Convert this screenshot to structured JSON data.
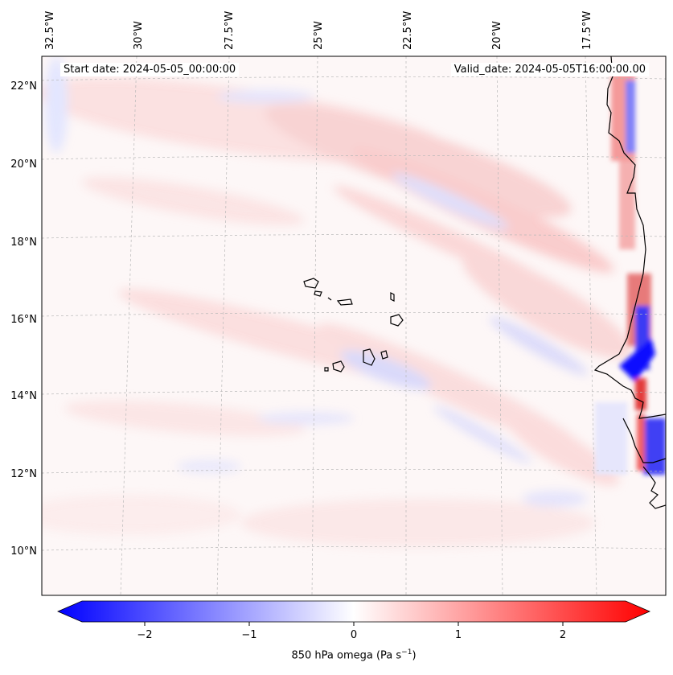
{
  "map": {
    "projection": "Lambert Conformal",
    "region": "Eastern tropical North Atlantic — Cape Verde Islands and West African coast",
    "lon_labels": [
      "32.5°W",
      "30°W",
      "27.5°W",
      "25°W",
      "22.5°W",
      "20°W",
      "17.5°W"
    ],
    "lat_labels": [
      "22°N",
      "20°N",
      "18°N",
      "16°N",
      "14°N",
      "12°N",
      "10°N"
    ],
    "start_date_label": "Start date: 2024-05-05_00:00:00",
    "valid_date_label": "Valid_date: 2024-05-05T16:00:00.00",
    "field": "850 hPa omega",
    "colormap": "bwr",
    "colors": {
      "negative": "#0000ff",
      "zero": "#ffffff",
      "positive": "#ff0000",
      "coastline": "#000000",
      "gridline": "#b0b0b0"
    }
  },
  "colorbar": {
    "min": -2.6,
    "max": 2.6,
    "extend": "both",
    "ticks": [
      -2,
      -1,
      0,
      1,
      2
    ],
    "tick_labels": [
      "−2",
      "−1",
      "0",
      "1",
      "2"
    ],
    "title_prefix": "850 hPa omega (Pa s",
    "title_superscript": "−1",
    "title_suffix": ")"
  }
}
